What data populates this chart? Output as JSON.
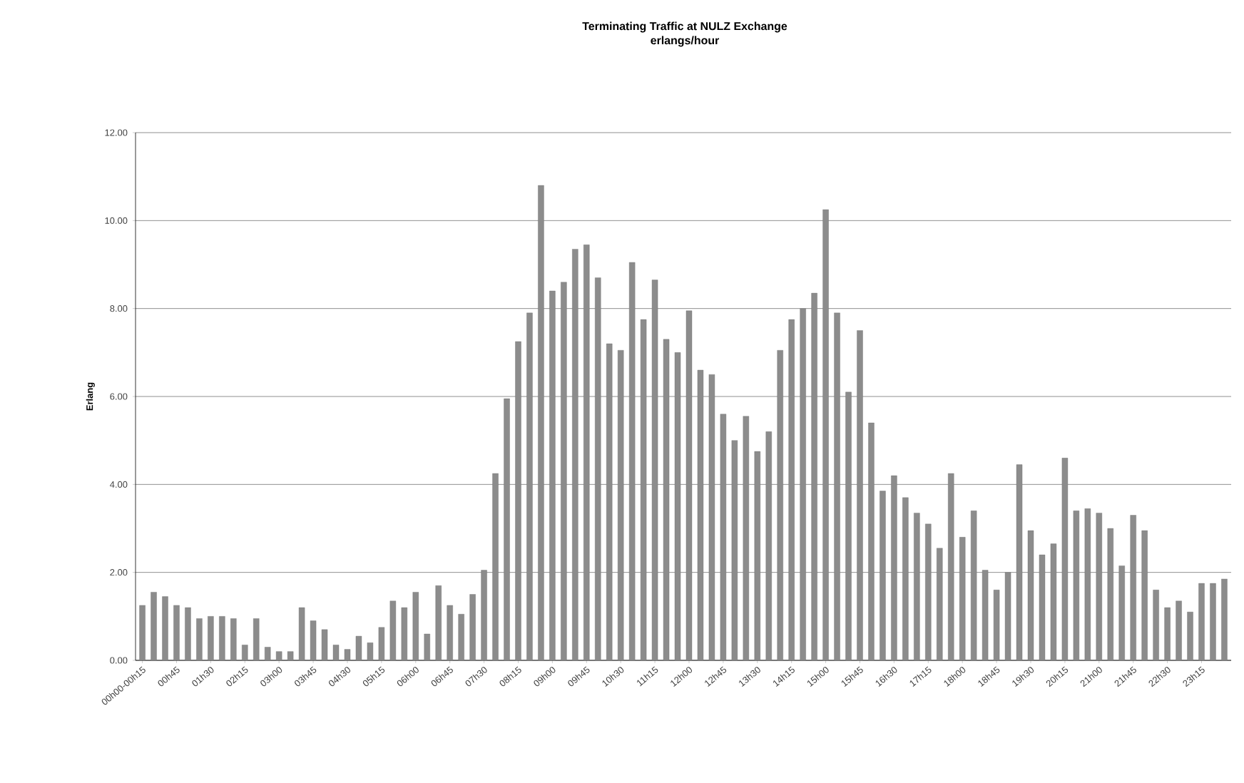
{
  "chart_data": {
    "type": "bar",
    "title": "Terminating Traffic at NULZ Exchange",
    "subtitle": "erlangs/hour",
    "ylabel": "Erlang",
    "categories": [
      "00h00-00h15",
      null,
      null,
      "00h45",
      null,
      null,
      "01h30",
      null,
      null,
      "02h15",
      null,
      null,
      "03h00",
      null,
      null,
      "03h45",
      null,
      null,
      "04h30",
      null,
      null,
      "05h15",
      null,
      null,
      "06h00",
      null,
      null,
      "06h45",
      null,
      null,
      "07h30",
      null,
      null,
      "08h15",
      null,
      null,
      "09h00",
      null,
      null,
      "09h45",
      null,
      null,
      "10h30",
      null,
      null,
      "11h15",
      null,
      null,
      "12h00",
      null,
      null,
      "12h45",
      null,
      null,
      "13h30",
      null,
      null,
      "14h15",
      null,
      null,
      "15h00",
      null,
      null,
      "15h45",
      null,
      null,
      "16h30",
      null,
      null,
      "17h15",
      null,
      null,
      "18h00",
      null,
      null,
      "18h45",
      null,
      null,
      "19h30",
      null,
      null,
      "20h15",
      null,
      null,
      "21h00",
      null,
      null,
      "21h45",
      null,
      null,
      "22h30",
      null,
      null,
      "23h15",
      null,
      null
    ],
    "values": [
      1.25,
      1.55,
      1.45,
      1.25,
      1.2,
      0.95,
      1.0,
      1.0,
      0.95,
      0.35,
      0.95,
      0.3,
      0.2,
      0.2,
      1.2,
      0.9,
      0.7,
      0.35,
      0.25,
      0.55,
      0.4,
      0.75,
      1.35,
      1.2,
      1.55,
      0.6,
      1.7,
      1.25,
      1.05,
      1.5,
      2.05,
      4.25,
      5.95,
      7.25,
      7.9,
      10.8,
      8.4,
      8.6,
      9.35,
      9.45,
      8.7,
      7.2,
      7.05,
      9.05,
      7.75,
      8.65,
      7.3,
      7.0,
      7.95,
      6.6,
      6.5,
      5.6,
      5.0,
      5.55,
      4.75,
      5.2,
      7.05,
      7.75,
      8.0,
      8.35,
      10.25,
      7.9,
      6.1,
      7.5,
      5.4,
      3.85,
      4.2,
      3.7,
      3.35,
      3.1,
      2.55,
      4.25,
      2.8,
      3.4,
      2.05,
      1.6,
      2.0,
      4.45,
      2.95,
      2.4,
      2.65,
      4.6,
      3.4,
      3.45,
      3.35,
      3.0,
      2.15,
      3.3,
      2.95,
      1.6,
      1.2,
      1.35,
      1.1,
      1.75,
      1.75,
      1.85
    ],
    "color": "#8c8c8c",
    "ylim": [
      0,
      12
    ],
    "yticks": [
      {
        "value": 0,
        "label": "0.00"
      },
      {
        "value": 2,
        "label": "2.00"
      },
      {
        "value": 4,
        "label": "4.00"
      },
      {
        "value": 6,
        "label": "6.00"
      },
      {
        "value": 8,
        "label": "8.00"
      },
      {
        "value": 10,
        "label": "10.00"
      },
      {
        "value": 12,
        "label": "12.00"
      }
    ],
    "grid": "y"
  }
}
